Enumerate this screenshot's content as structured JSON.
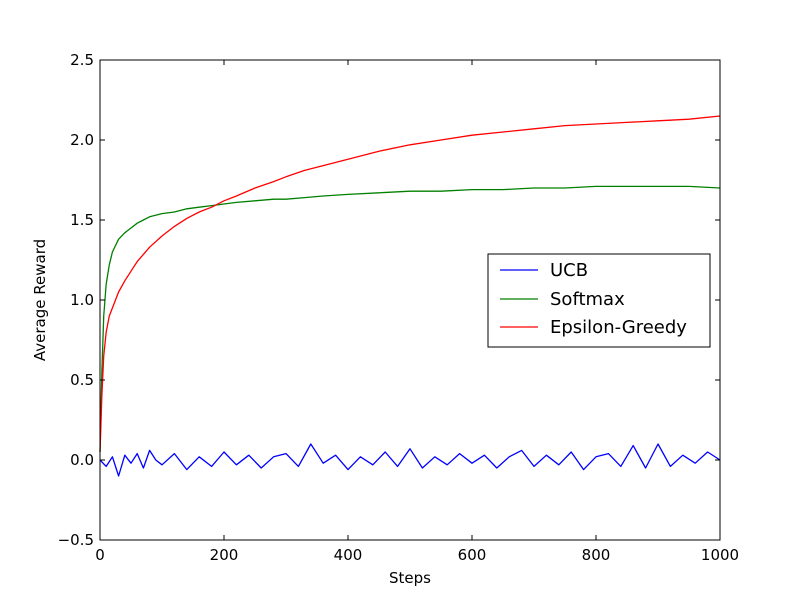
{
  "chart_data": {
    "type": "line",
    "title": "",
    "xlabel": "Steps",
    "ylabel": "Average Reward",
    "xlim": [
      0,
      1000
    ],
    "ylim": [
      -0.5,
      2.5
    ],
    "x_ticks": [
      0,
      200,
      400,
      600,
      800,
      1000
    ],
    "x_tick_labels": [
      "0",
      "200",
      "400",
      "600",
      "800",
      "1000"
    ],
    "y_ticks": [
      -0.5,
      0.0,
      0.5,
      1.0,
      1.5,
      2.0,
      2.5
    ],
    "y_tick_labels": [
      "−0.5",
      "0.0",
      "0.5",
      "1.0",
      "1.5",
      "2.0",
      "2.5"
    ],
    "grid": false,
    "legend_position": "center-right",
    "series": [
      {
        "name": "UCB",
        "color": "#0000ff",
        "x": [
          0,
          10,
          20,
          30,
          40,
          50,
          60,
          70,
          80,
          90,
          100,
          120,
          140,
          160,
          180,
          200,
          220,
          240,
          260,
          280,
          300,
          320,
          340,
          360,
          380,
          400,
          420,
          440,
          460,
          480,
          500,
          520,
          540,
          560,
          580,
          600,
          620,
          640,
          660,
          680,
          700,
          720,
          740,
          760,
          780,
          800,
          820,
          840,
          860,
          880,
          900,
          920,
          940,
          960,
          980,
          1000
        ],
        "y": [
          0.0,
          -0.04,
          0.02,
          -0.1,
          0.03,
          -0.02,
          0.04,
          -0.05,
          0.06,
          0.0,
          -0.03,
          0.04,
          -0.06,
          0.02,
          -0.04,
          0.05,
          -0.03,
          0.03,
          -0.05,
          0.02,
          0.04,
          -0.04,
          0.1,
          -0.02,
          0.03,
          -0.06,
          0.02,
          -0.03,
          0.05,
          -0.04,
          0.07,
          -0.05,
          0.02,
          -0.03,
          0.04,
          -0.02,
          0.03,
          -0.05,
          0.02,
          0.06,
          -0.04,
          0.03,
          -0.03,
          0.05,
          -0.06,
          0.02,
          0.04,
          -0.04,
          0.09,
          -0.05,
          0.1,
          -0.04,
          0.03,
          -0.02,
          0.05,
          0.0
        ]
      },
      {
        "name": "Softmax",
        "color": "#008000",
        "x": [
          0,
          3,
          6,
          10,
          15,
          20,
          30,
          40,
          50,
          60,
          70,
          80,
          100,
          120,
          140,
          160,
          180,
          200,
          220,
          250,
          280,
          300,
          330,
          360,
          400,
          450,
          500,
          550,
          600,
          650,
          700,
          750,
          800,
          850,
          900,
          950,
          1000
        ],
        "y": [
          0.05,
          0.55,
          0.9,
          1.1,
          1.22,
          1.3,
          1.38,
          1.42,
          1.45,
          1.48,
          1.5,
          1.52,
          1.54,
          1.55,
          1.57,
          1.58,
          1.59,
          1.6,
          1.61,
          1.62,
          1.63,
          1.63,
          1.64,
          1.65,
          1.66,
          1.67,
          1.68,
          1.68,
          1.69,
          1.69,
          1.7,
          1.7,
          1.71,
          1.71,
          1.71,
          1.71,
          1.7
        ]
      },
      {
        "name": "Epsilon-Greedy",
        "color": "#ff0000",
        "x": [
          0,
          3,
          6,
          10,
          15,
          20,
          30,
          40,
          50,
          60,
          80,
          100,
          120,
          140,
          160,
          180,
          200,
          220,
          250,
          280,
          300,
          330,
          360,
          400,
          450,
          500,
          550,
          600,
          650,
          700,
          750,
          800,
          850,
          900,
          950,
          1000
        ],
        "y": [
          0.05,
          0.4,
          0.65,
          0.8,
          0.9,
          0.95,
          1.05,
          1.12,
          1.18,
          1.24,
          1.33,
          1.4,
          1.46,
          1.51,
          1.55,
          1.58,
          1.62,
          1.65,
          1.7,
          1.74,
          1.77,
          1.81,
          1.84,
          1.88,
          1.93,
          1.97,
          2.0,
          2.03,
          2.05,
          2.07,
          2.09,
          2.1,
          2.11,
          2.12,
          2.13,
          2.15
        ]
      }
    ]
  }
}
